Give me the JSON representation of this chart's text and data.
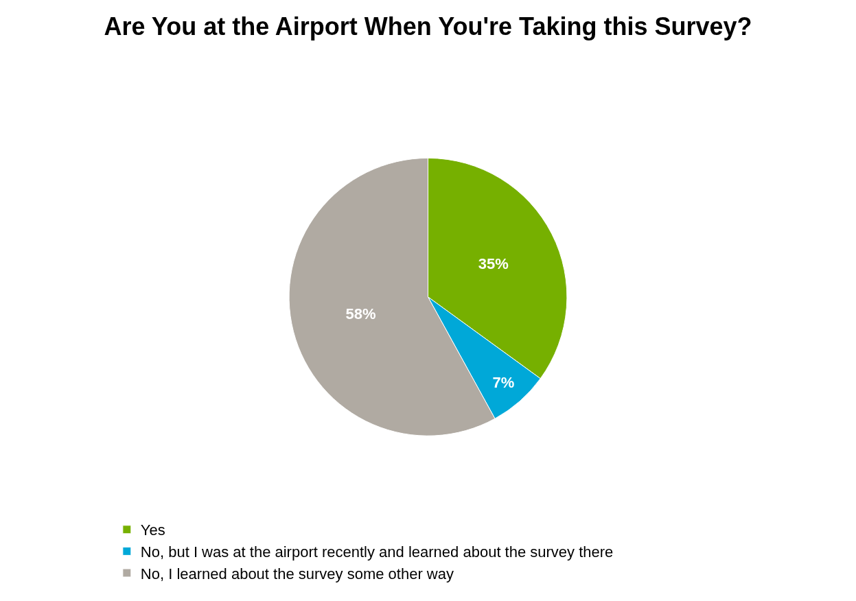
{
  "chart_data": {
    "type": "pie",
    "title": "Are You at the Airport When You're Taking this Survey?",
    "categories": [
      "Yes",
      "No, but I was at the airport recently and learned about the survey there",
      "No, I learned about the survey some other way"
    ],
    "values": [
      35,
      7,
      58
    ],
    "value_labels": [
      "35%",
      "7%",
      "58%"
    ],
    "colors": [
      "#76b000",
      "#00a8d8",
      "#b0aaa2"
    ],
    "legend": "bottom left"
  }
}
